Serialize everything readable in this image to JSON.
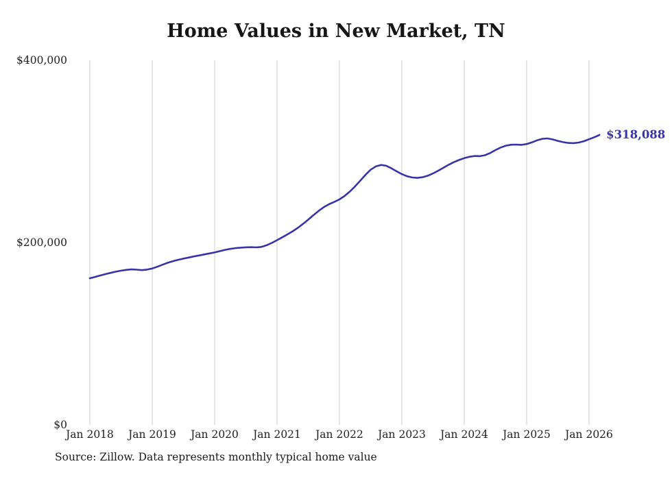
{
  "page": {
    "title": "Home Values in New Market, TN",
    "source_note": "Source: Zillow. Data represents monthly typical home value"
  },
  "colors": {
    "line": "#3833a8",
    "grid": "#cbcbcb",
    "text": "#222222",
    "title_text": "#151515",
    "background": "#ffffff"
  },
  "chart_data": {
    "type": "line",
    "title": "Home Values in New Market, TN",
    "xlabel": "",
    "ylabel": "",
    "x_tick_labels": [
      "Jan 2018",
      "Jan 2019",
      "Jan 2020",
      "Jan 2021",
      "Jan 2022",
      "Jan 2023",
      "Jan 2024",
      "Jan 2025",
      "Jan 2026"
    ],
    "yticks": [
      0,
      200000,
      400000
    ],
    "y_tick_labels": [
      "$0",
      "$200,000",
      "$400,000"
    ],
    "ylim": [
      0,
      400000
    ],
    "grid": "vertical-only",
    "legend": "none",
    "line_color": "#3833a8",
    "end_label": "$318,088",
    "final_value": 318088,
    "source": "Source: Zillow. Data represents monthly typical home value",
    "series": [
      {
        "name": "Monthly typical home value",
        "x_start": "Jan 2018",
        "x_interval": "monthly",
        "values": [
          160800,
          162300,
          163900,
          165400,
          166800,
          168100,
          169200,
          170100,
          170600,
          170300,
          169800,
          170400,
          171600,
          173500,
          175800,
          177900,
          179600,
          181100,
          182400,
          183600,
          184800,
          185900,
          187000,
          188100,
          189200,
          190600,
          192000,
          193100,
          193900,
          194400,
          194800,
          195000,
          194700,
          195300,
          197100,
          199600,
          202600,
          205800,
          209000,
          212400,
          216200,
          220500,
          225200,
          230100,
          234800,
          238900,
          242100,
          244600,
          247400,
          251200,
          256000,
          261700,
          267900,
          274300,
          279900,
          283600,
          285200,
          284300,
          281500,
          278200,
          275100,
          272800,
          271400,
          271000,
          271700,
          273400,
          275900,
          278900,
          282200,
          285400,
          288200,
          290600,
          292600,
          294100,
          295000,
          294800,
          295900,
          298300,
          301500,
          304300,
          306300,
          307400,
          307500,
          307200,
          308100,
          309900,
          312200,
          313800,
          314300,
          313200,
          311600,
          310200,
          309300,
          309100,
          309800,
          311200,
          313400,
          315600,
          318088
        ]
      }
    ]
  }
}
